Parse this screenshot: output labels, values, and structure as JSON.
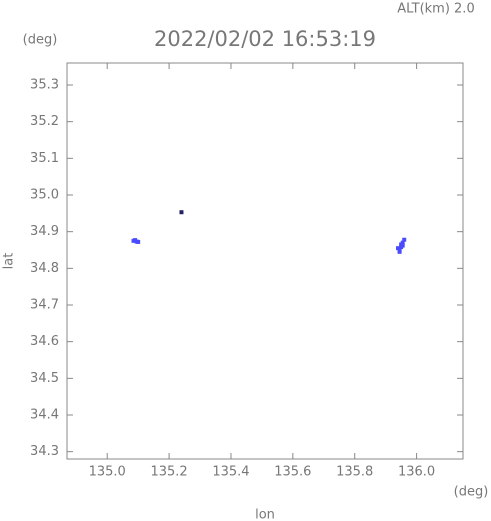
{
  "chart_data": {
    "type": "scatter",
    "title": "2022/02/02 16:53:19",
    "annotation": "ALT(km) 2.0",
    "x_label": "lon",
    "y_label": "lat",
    "x_unit": "(deg)",
    "y_unit": "(deg)",
    "xlim": [
      134.87,
      136.15
    ],
    "ylim": [
      34.28,
      35.36
    ],
    "xticks": [
      {
        "value": 135.0,
        "label": "135.0"
      },
      135.2,
      135.4,
      135.6,
      135.8,
      {
        "value": 136.0,
        "label": "136.0"
      }
    ],
    "yticks": [
      34.3,
      34.4,
      34.5,
      34.6,
      34.7,
      34.8,
      34.9,
      {
        "value": 35.0,
        "label": "35.0"
      },
      35.1,
      35.2,
      35.3
    ],
    "series": [
      {
        "color": "#4a4aff",
        "x": [
          135.085,
          135.09,
          135.095,
          135.1,
          135.94,
          135.945,
          135.95,
          135.95,
          135.955,
          135.955,
          135.96,
          135.945
        ],
        "values": [
          34.875,
          34.877,
          34.873,
          34.872,
          34.855,
          34.85,
          34.858,
          34.865,
          34.87,
          34.862,
          34.878,
          34.845
        ]
      },
      {
        "color": "#222266",
        "x": [
          135.24
        ],
        "values": [
          34.953
        ]
      }
    ]
  }
}
